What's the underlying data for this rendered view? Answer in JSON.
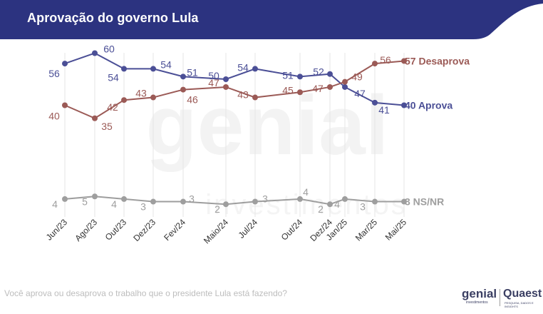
{
  "header": {
    "title": "Aprovação do governo Lula"
  },
  "footer": {
    "question": "Você aprova ou desaprova o trabalho que o presidente Lula está fazendo?"
  },
  "logos": {
    "genial": "genial",
    "genial_sub": "investimentos",
    "quaest": "Quaest",
    "quaest_sub": "PESQUISA, DADOS E INSIGHTS"
  },
  "colors": {
    "banner": "#2c3380",
    "approve": "#4b4f96",
    "disapprove": "#9b5a56",
    "nsnr": "#9e9e9e",
    "grid": "#e6e6e6"
  },
  "chart_data": {
    "type": "line",
    "categories": [
      "Jun/23",
      "Ago/23",
      "Out/23",
      "Dez/23",
      "Fev/24",
      "Maio/24",
      "Jul/24",
      "Out/24",
      "Dez/24",
      "Jan/25",
      "Mar/25",
      "Mai/25"
    ],
    "series": [
      {
        "name": "Aprova",
        "end_label": "40 Aprova",
        "key": "approve",
        "values": [
          56,
          60,
          54,
          54,
          51,
          50,
          54,
          51,
          52,
          47,
          41,
          40
        ]
      },
      {
        "name": "Desaprova",
        "end_label": "57 Desaprova",
        "key": "disapprove",
        "values": [
          40,
          35,
          42,
          43,
          46,
          47,
          43,
          45,
          47,
          49,
          56,
          57
        ]
      },
      {
        "name": "NS/NR",
        "end_label": "3 NS/NR",
        "key": "nsnr",
        "values": [
          4,
          5,
          4,
          3,
          3,
          2,
          3,
          4,
          2,
          4,
          3,
          3
        ]
      }
    ],
    "ylim": [
      0,
      62
    ],
    "grid": true,
    "watermark": [
      "genial",
      "investimentos"
    ]
  }
}
